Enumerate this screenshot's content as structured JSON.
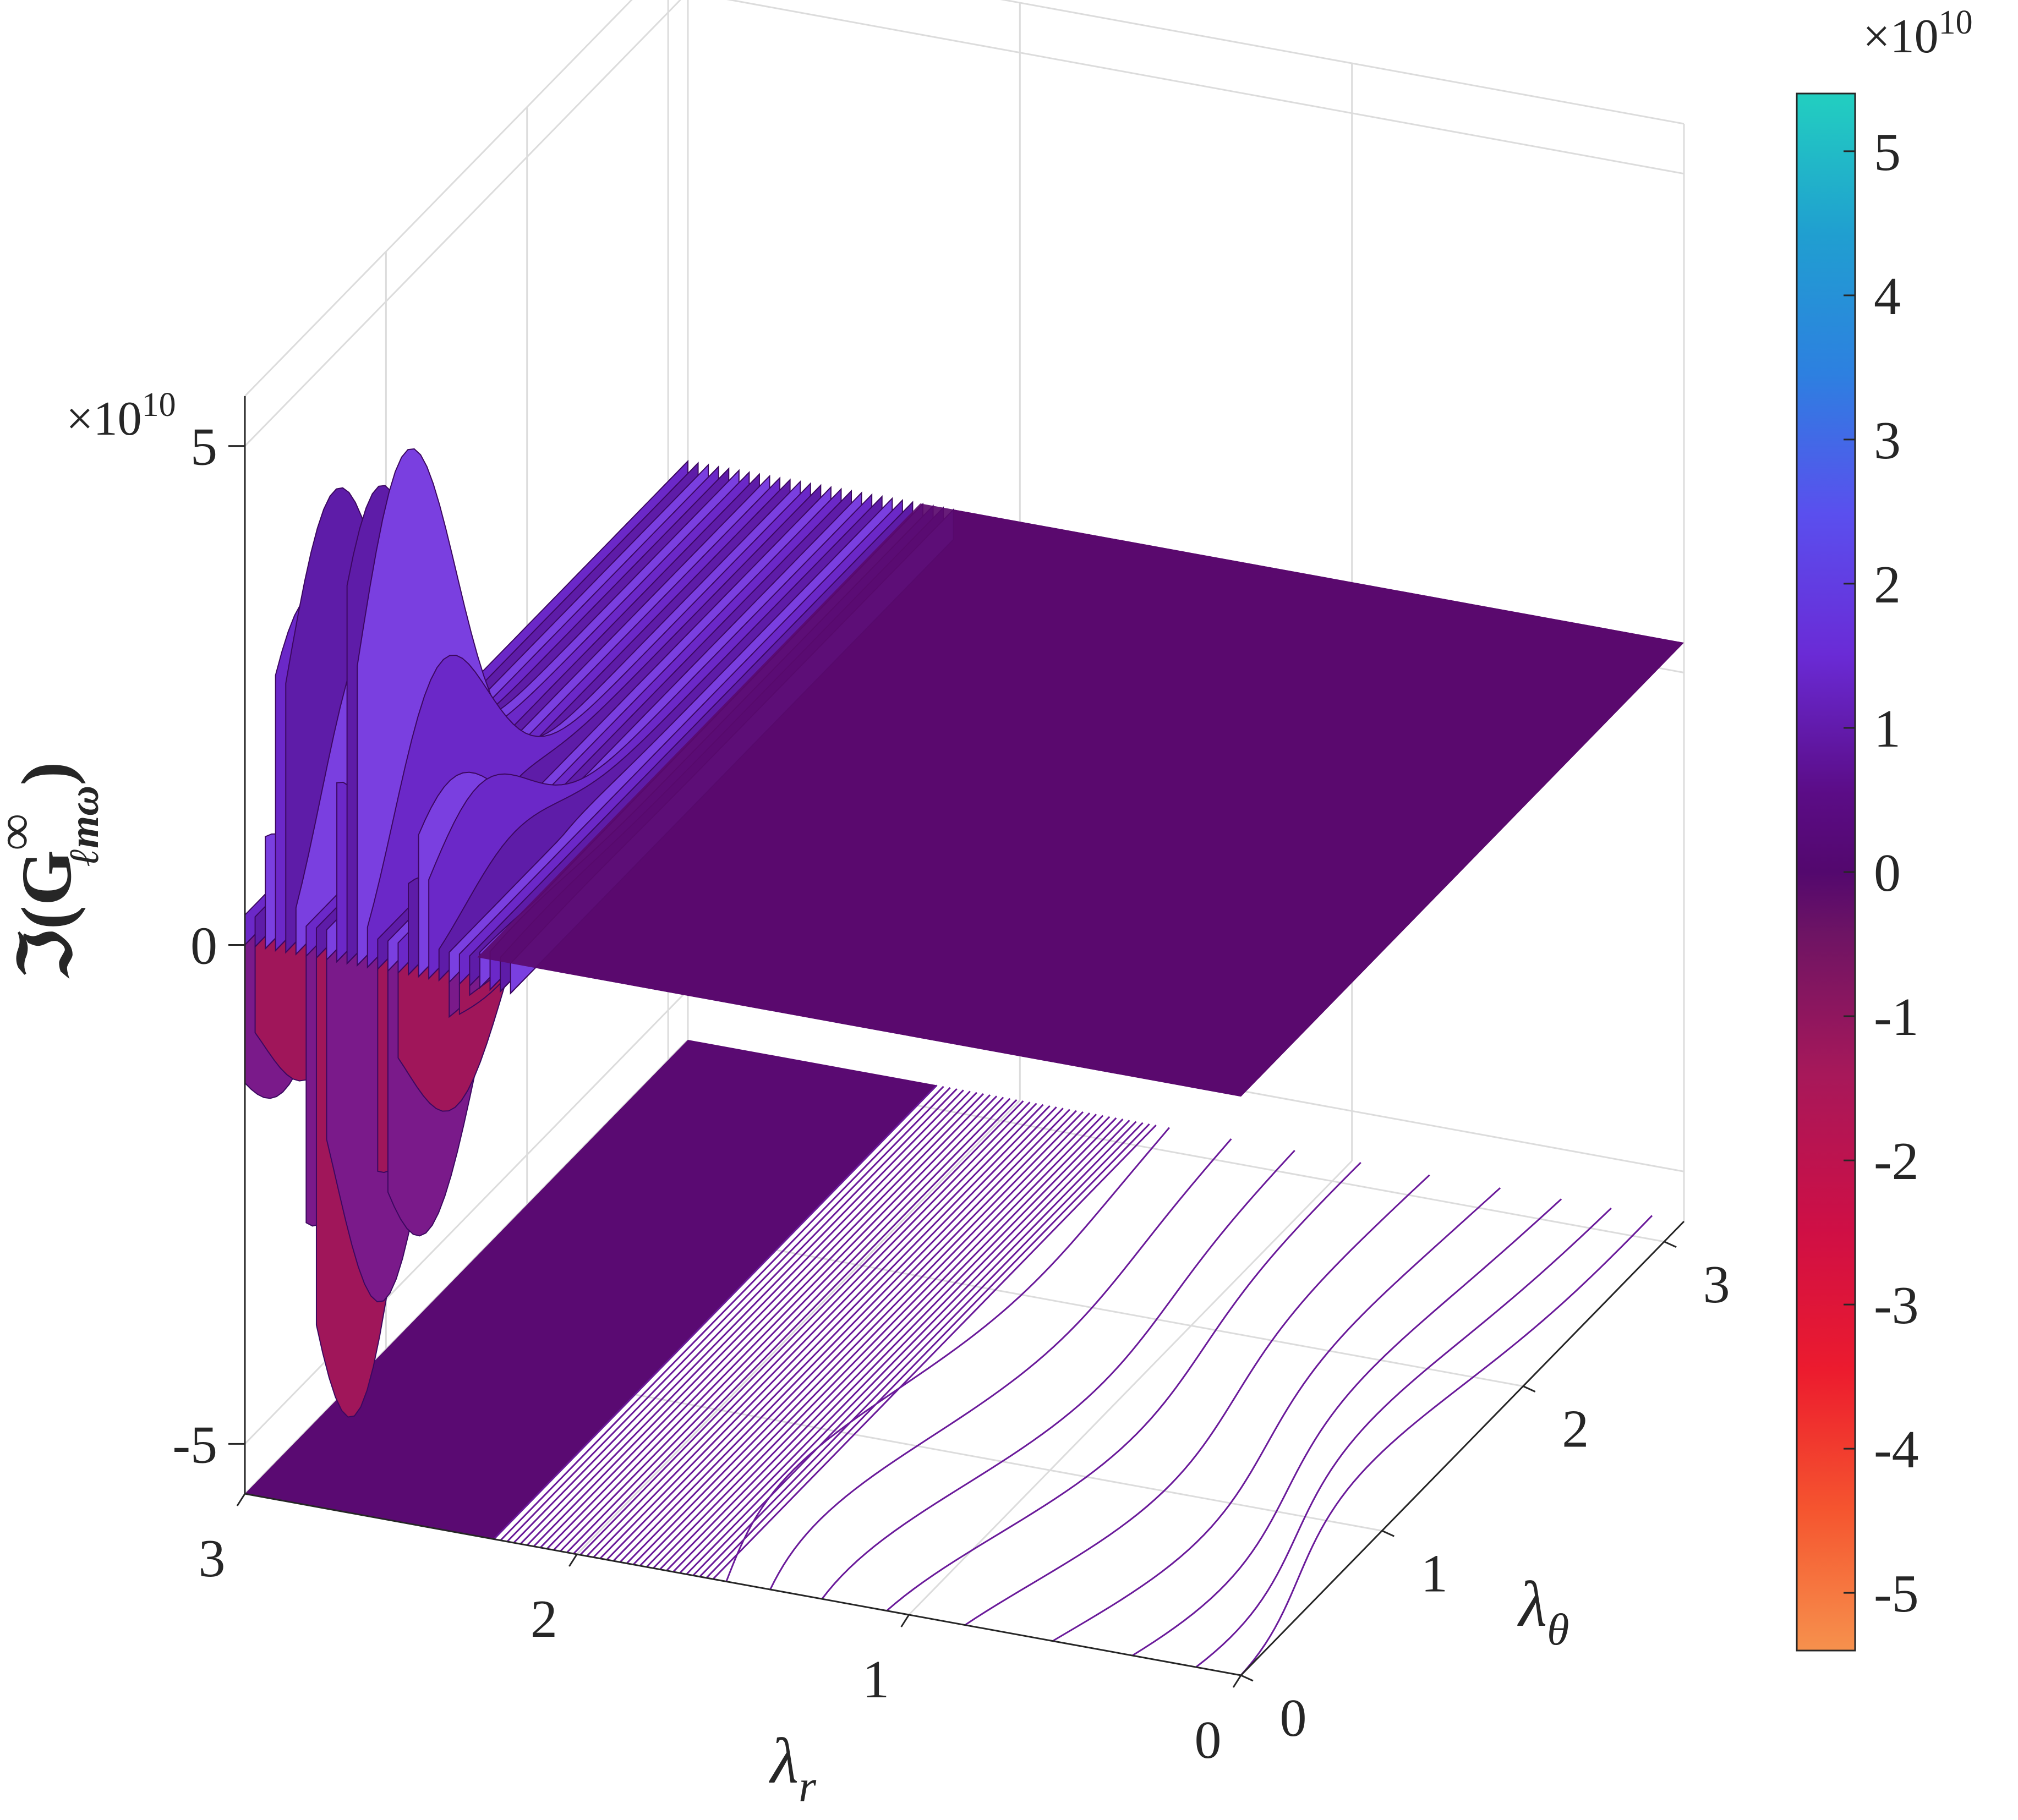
{
  "chart_data": {
    "type": "surface",
    "title": "",
    "xlabel": "λ_r",
    "ylabel": "λ_θ",
    "zlabel": "ℑ(G^∞_{ℓmω})",
    "x_axis": {
      "name": "λ_r",
      "lim": [
        0,
        3
      ],
      "ticks": [
        "0",
        "1",
        "2",
        "3"
      ]
    },
    "y_axis": {
      "name": "λ_θ",
      "lim": [
        0,
        3.14
      ],
      "ticks": [
        "0",
        "1",
        "2",
        "3"
      ]
    },
    "z_axis": {
      "lim": [
        -5.5,
        5.5
      ],
      "ticks": [
        "-5",
        "0",
        "5"
      ],
      "exponent": "×10",
      "exponent_power": "10"
    },
    "colorbar": {
      "lim": [
        -5.4,
        5.4
      ],
      "ticks": [
        "5",
        "4",
        "3",
        "2",
        "1",
        "0",
        "-1",
        "-2",
        "-3",
        "-4",
        "-5"
      ],
      "exponent": "×10",
      "exponent_power": "10",
      "colors": [
        "#22CFC0",
        "#2090D8",
        "#4F5CEC",
        "#6A2ADA",
        "#55077A",
        "#5A0C6A",
        "#8A1A5E",
        "#B8144E",
        "#E20A34",
        "#F4342A",
        "#F5924E"
      ]
    },
    "surface": {
      "description_values": "oscillation concentrated near λ_r ≈ 2.2–2.8; flat ≈ 0 for λ_r < 2",
      "peak_max": 5.4,
      "peak_min": -4.9,
      "flat_value": 0,
      "base_color": "#5A0A6E"
    },
    "grid": true,
    "contour_projection": true
  },
  "labels": {
    "x_label_main": "λ",
    "x_label_sub": "r",
    "y_label_main": "λ",
    "y_label_sub": "θ",
    "z_label_text": "ℑ(G",
    "z_label_sup": "∞",
    "z_label_sub": "ℓmω",
    "z_label_close": ")"
  }
}
